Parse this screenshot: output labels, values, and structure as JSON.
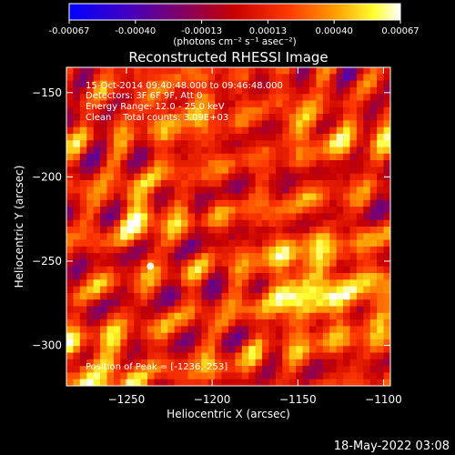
{
  "chart_data": {
    "type": "heatmap",
    "title": "Reconstructed RHESSI Image",
    "xlabel": "Heliocentric X (arcsec)",
    "ylabel": "Heliocentric Y (arcsec)",
    "xlim": [
      -1285,
      -1096
    ],
    "ylim": [
      -324,
      -135
    ],
    "x_ticks": [
      -1250,
      -1200,
      -1150,
      -1100
    ],
    "y_ticks": [
      -150,
      -200,
      -250,
      -300
    ],
    "colorbar": {
      "min": -0.00067,
      "max": 0.00067,
      "ticks": [
        "-0.00067",
        "-0.00040",
        "-0.00013",
        "0.00013",
        "0.00040",
        "0.00067"
      ],
      "units_label": "(photons cm⁻² s⁻¹ asec⁻²)",
      "colormap": "blue-purple-red-orange-yellow-white"
    },
    "annotations": [
      "15-Oct-2014 09:40:48.000 to 09:46:48.000",
      "Detectors: 3F 6F 9F, Att 0",
      "Energy Range: 12.0 - 25.0 keV",
      "Clean    Total counts: 3.09E+03"
    ],
    "peak": {
      "label": "Position of Peak = [-1236,-253]",
      "x": -1236,
      "y": -253
    },
    "grid": false,
    "legend": "none"
  },
  "footer": {
    "timestamp": "18-May-2022 03:08"
  }
}
